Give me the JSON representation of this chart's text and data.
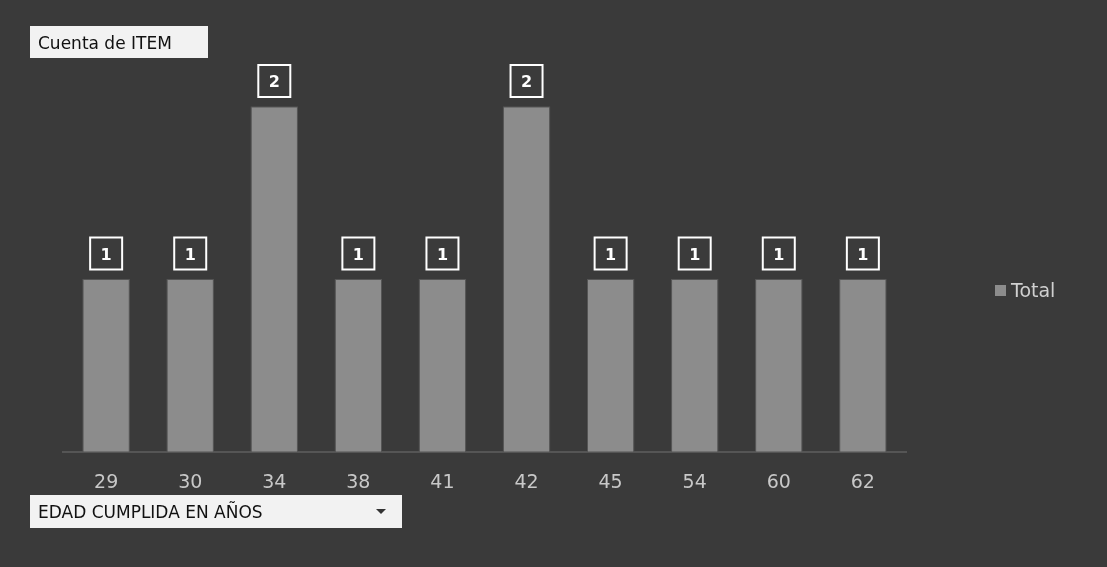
{
  "chart_data": {
    "type": "bar",
    "title": "Cuenta de ITEM",
    "xlabel": "EDAD CUMPLIDA EN AÑOS",
    "categories": [
      "29",
      "30",
      "34",
      "38",
      "41",
      "42",
      "45",
      "54",
      "60",
      "62"
    ],
    "series": [
      {
        "name": "Total",
        "color": "#8c8c8c",
        "values": [
          1,
          1,
          2,
          1,
          1,
          2,
          1,
          1,
          1,
          1
        ]
      }
    ],
    "data_labels": true,
    "legend": "right",
    "grid": false
  }
}
